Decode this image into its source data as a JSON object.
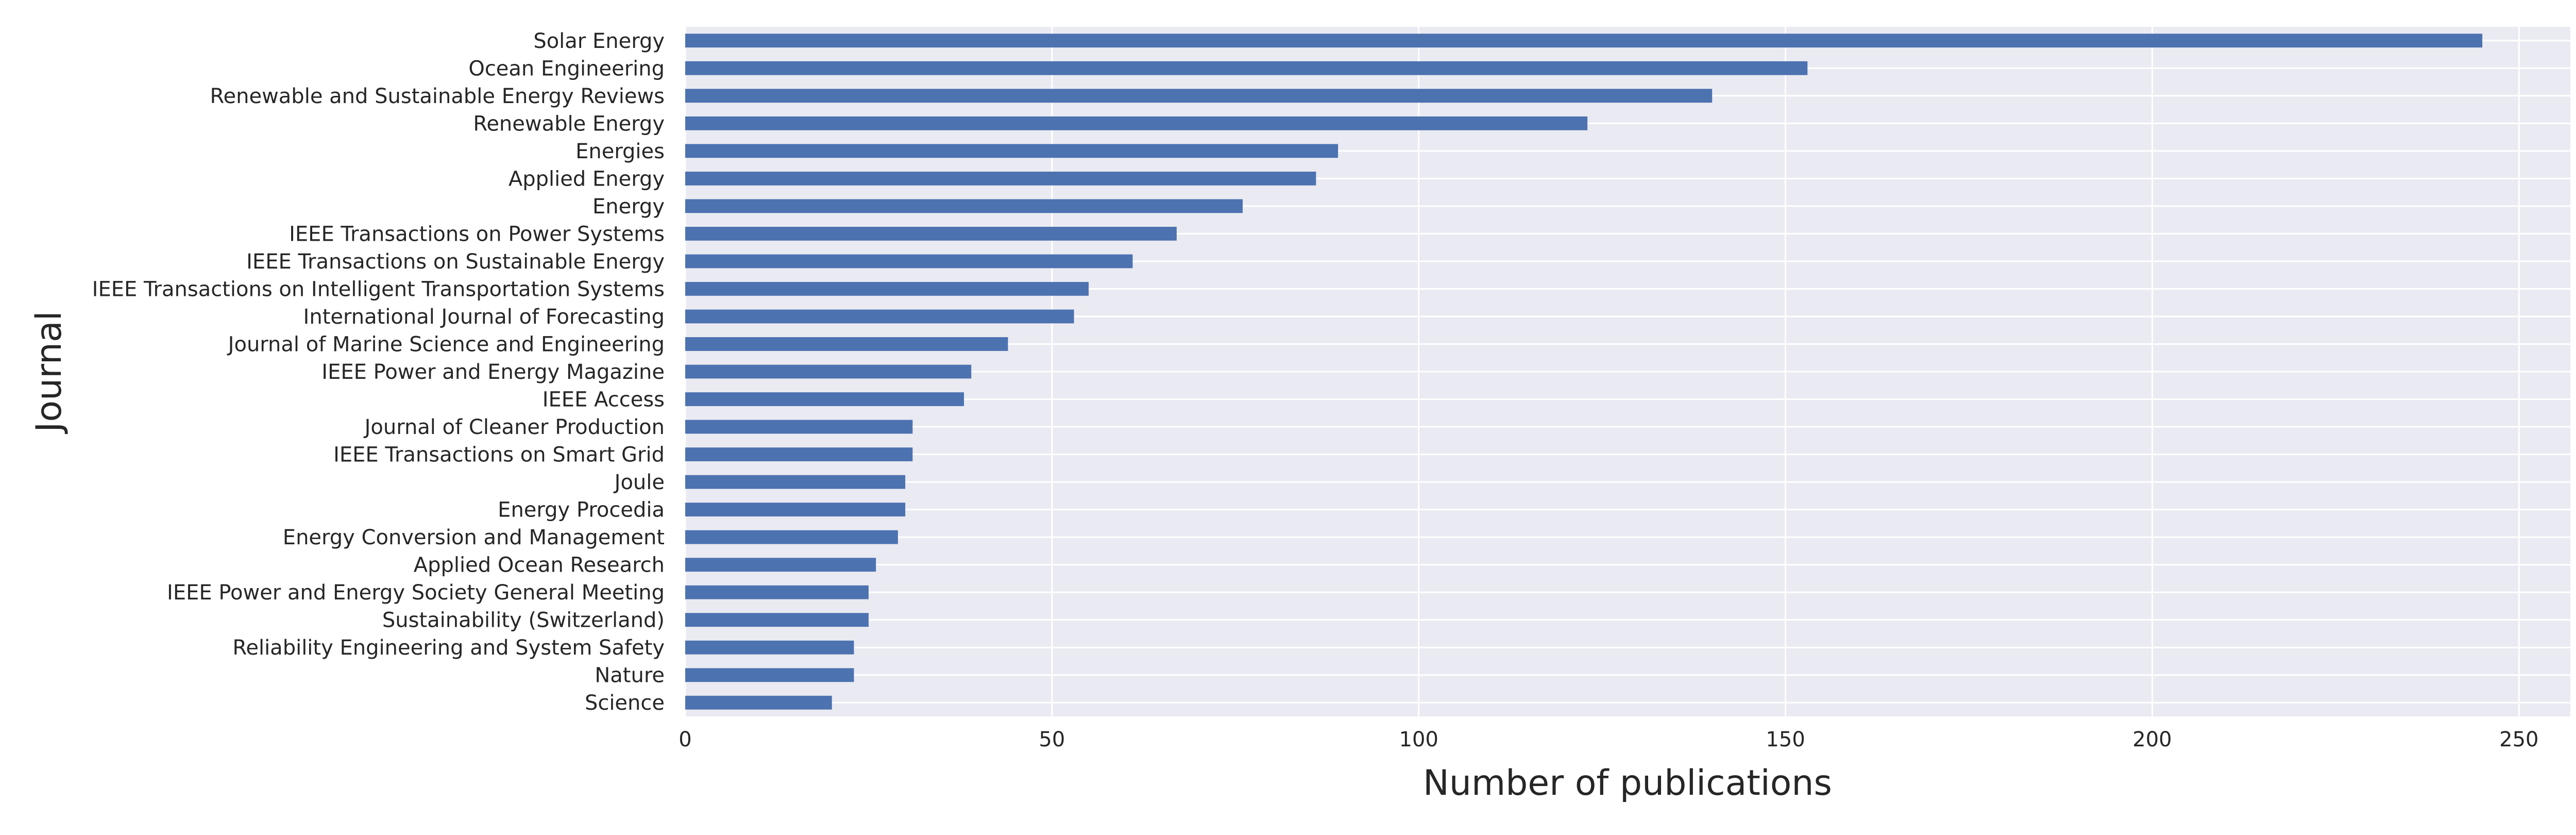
{
  "chart_data": {
    "type": "bar",
    "orientation": "horizontal",
    "xlabel": "Number of publications",
    "ylabel": "Journal",
    "xlim": [
      0,
      257
    ],
    "xticks": [
      0,
      50,
      100,
      150,
      200,
      250
    ],
    "grid": true,
    "colors": {
      "bar": "#4C72B0",
      "plot_background": "#EAEAF2",
      "grid": "#FFFFFF",
      "text": "#262626"
    },
    "categories": [
      "Solar Energy",
      "Ocean Engineering",
      "Renewable and Sustainable Energy Reviews",
      "Renewable Energy",
      "Energies",
      "Applied Energy",
      "Energy",
      "IEEE Transactions on Power Systems",
      "IEEE Transactions on Sustainable Energy",
      "IEEE Transactions on Intelligent Transportation Systems",
      "International Journal of Forecasting",
      "Journal of Marine Science and Engineering",
      "IEEE Power and Energy Magazine",
      "IEEE Access",
      "Journal of Cleaner Production",
      "IEEE Transactions on Smart Grid",
      "Joule",
      "Energy Procedia",
      "Energy Conversion and Management",
      "Applied Ocean Research",
      "IEEE Power and Energy Society General Meeting",
      "Sustainability (Switzerland)",
      "Reliability Engineering and System Safety",
      "Nature",
      "Science"
    ],
    "values": [
      245,
      153,
      140,
      123,
      89,
      86,
      76,
      67,
      61,
      55,
      53,
      44,
      39,
      38,
      31,
      31,
      30,
      30,
      29,
      26,
      25,
      25,
      23,
      23,
      20
    ]
  }
}
